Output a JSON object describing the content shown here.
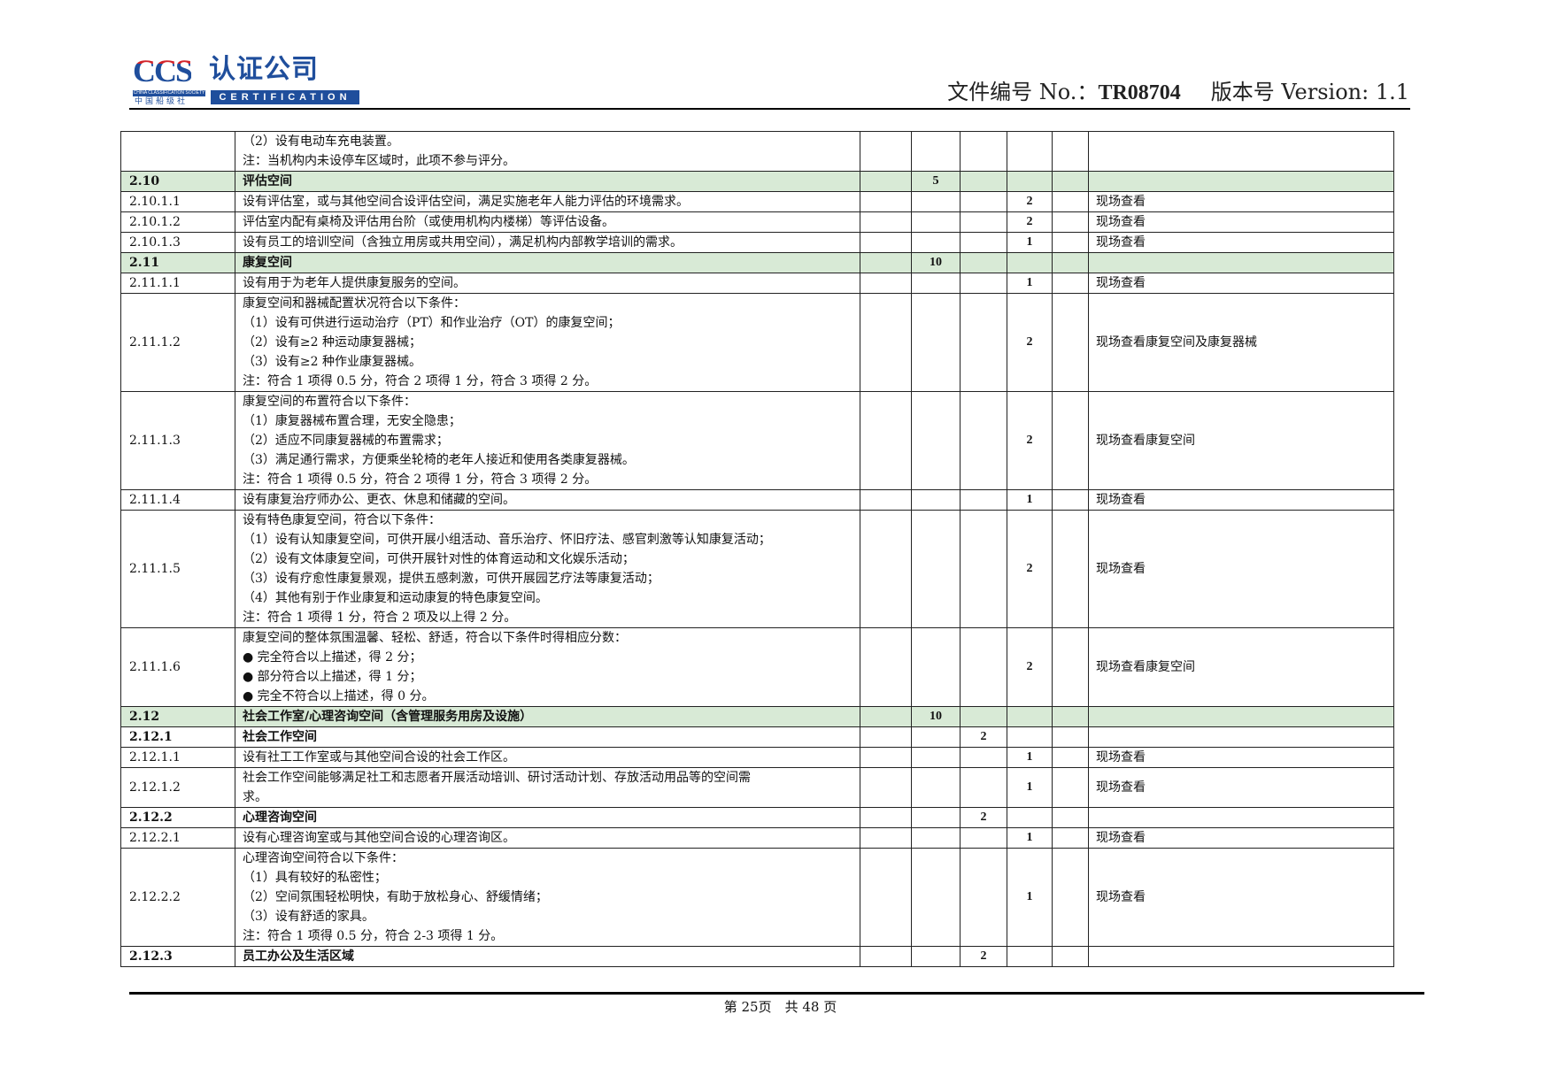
{
  "header": {
    "logo": {
      "ccs": "CCS",
      "cn": "认证公司",
      "society": "CHINA CLASSIFICATION SOCIETY",
      "society_cn": "中国船级社",
      "cert": "CERTIFICATION"
    },
    "doc_no_label": "文件编号 No.：",
    "doc_no": "TR08704",
    "version_label": "版本号 Version: 1.1"
  },
  "colors": {
    "section_fill": "#d8ead6",
    "logo_blue": "#1f4e9c",
    "logo_red": "#d2232a"
  },
  "rows": [
    {
      "id": "",
      "lines": [
        "（2）设有电动车充电装置。",
        "注：当机构内未设停车区域时，此项不参与评分。"
      ],
      "c": "",
      "d": "",
      "e": "",
      "f": "",
      "g": "",
      "method": ""
    },
    {
      "id": "2.10",
      "lines": [
        "评估空间"
      ],
      "bold": true,
      "green": true,
      "c": "",
      "d": "5",
      "e": "",
      "f": "",
      "g": "",
      "method": ""
    },
    {
      "id": "2.10.1.1",
      "lines": [
        "设有评估室，或与其他空间合设评估空间，满足实施老年人能力评估的环境需求。"
      ],
      "f": "2",
      "method": "现场查看"
    },
    {
      "id": "2.10.1.2",
      "lines": [
        "评估室内配有桌椅及评估用台阶（或使用机构内楼梯）等评估设备。"
      ],
      "f": "2",
      "method": "现场查看"
    },
    {
      "id": "2.10.1.3",
      "lines": [
        "设有员工的培训空间（含独立用房或共用空间），满足机构内部教学培训的需求。"
      ],
      "f": "1",
      "method": "现场查看"
    },
    {
      "id": "2.11",
      "lines": [
        "康复空间"
      ],
      "bold": true,
      "green": true,
      "d": "10"
    },
    {
      "id": "2.11.1.1",
      "lines": [
        "设有用于为老年人提供康复服务的空间。"
      ],
      "f": "1",
      "method": "现场查看"
    },
    {
      "id": "2.11.1.2",
      "lines": [
        "康复空间和器械配置状况符合以下条件：",
        "（1）设有可供进行运动治疗（PT）和作业治疗（OT）的康复空间；",
        "（2）设有≥2 种运动康复器械；",
        "（3）设有≥2 种作业康复器械。",
        "注：符合 1 项得 0.5 分，符合 2 项得 1 分，符合 3 项得 2 分。"
      ],
      "f": "2",
      "method": "现场查看康复空间及康复器械"
    },
    {
      "id": "2.11.1.3",
      "lines": [
        "康复空间的布置符合以下条件：",
        "（1）康复器械布置合理，无安全隐患；",
        "（2）适应不同康复器械的布置需求；",
        "（3）满足通行需求，方便乘坐轮椅的老年人接近和使用各类康复器械。",
        "注：符合 1 项得 0.5 分，符合 2 项得 1 分，符合 3 项得 2 分。"
      ],
      "f": "2",
      "method": "现场查看康复空间"
    },
    {
      "id": "2.11.1.4",
      "lines": [
        "设有康复治疗师办公、更衣、休息和储藏的空间。"
      ],
      "f": "1",
      "method": "现场查看"
    },
    {
      "id": "2.11.1.5",
      "lines": [
        "设有特色康复空间，符合以下条件：",
        "（1）设有认知康复空间，可供开展小组活动、音乐治疗、怀旧疗法、感官刺激等认知康复活动；",
        "（2）设有文体康复空间，可供开展针对性的体育运动和文化娱乐活动；",
        "（3）设有疗愈性康复景观，提供五感刺激，可供开展园艺疗法等康复活动；",
        "（4）其他有别于作业康复和运动康复的特色康复空间。",
        "注：符合 1 项得 1 分，符合 2 项及以上得 2 分。"
      ],
      "f": "2",
      "method": "现场查看"
    },
    {
      "id": "2.11.1.6",
      "lines": [
        "康复空间的整体氛围温馨、轻松、舒适，符合以下条件时得相应分数：",
        "● 完全符合以上描述，得 2 分；",
        "● 部分符合以上描述，得 1 分；",
        "● 完全不符合以上描述，得 0 分。"
      ],
      "f": "2",
      "method": "现场查看康复空间"
    },
    {
      "id": "2.12",
      "lines": [
        "社会工作室/心理咨询空间（含管理服务用房及设施）"
      ],
      "bold": true,
      "green": true,
      "d": "10"
    },
    {
      "id": "2.12.1",
      "lines": [
        "社会工作空间"
      ],
      "bold": true,
      "e": "2"
    },
    {
      "id": "2.12.1.1",
      "lines": [
        "设有社工工作室或与其他空间合设的社会工作区。"
      ],
      "f": "1",
      "method": "现场查看"
    },
    {
      "id": "2.12.1.2",
      "lines": [
        "社会工作空间能够满足社工和志愿者开展活动培训、研讨活动计划、存放活动用品等的空间需",
        "求。"
      ],
      "f": "1",
      "method": "现场查看"
    },
    {
      "id": "2.12.2",
      "lines": [
        "心理咨询空间"
      ],
      "bold": true,
      "e": "2"
    },
    {
      "id": "2.12.2.1",
      "lines": [
        "设有心理咨询室或与其他空间合设的心理咨询区。"
      ],
      "f": "1",
      "method": "现场查看"
    },
    {
      "id": "2.12.2.2",
      "lines": [
        "心理咨询空间符合以下条件：",
        "（1）具有较好的私密性；",
        "（2）空间氛围轻松明快，有助于放松身心、舒缓情绪；",
        "（3）设有舒适的家具。",
        "注：符合 1 项得 0.5 分，符合 2-3 项得 1 分。"
      ],
      "f": "1",
      "method": "现场查看"
    },
    {
      "id": "2.12.3",
      "lines": [
        "员工办公及生活区域"
      ],
      "bold": true,
      "e": "2"
    }
  ],
  "footer": {
    "page": "第 25页　共 48 页"
  }
}
